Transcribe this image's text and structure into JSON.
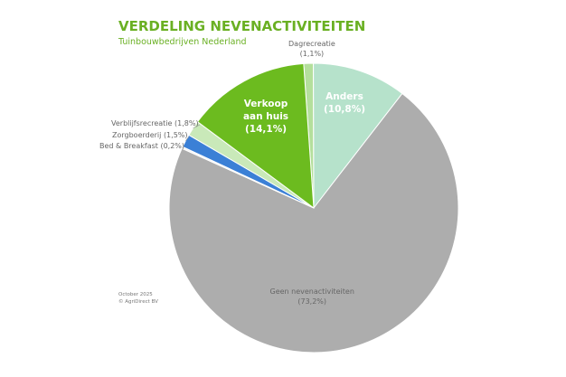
{
  "chart_data": {
    "type": "pie",
    "title": "VERDELING NEVENACTIVITEITEN",
    "subtitle": "Tuinbouwbedrijven Nederland",
    "categories": [
      "Dagrecreatie",
      "Anders",
      "Geen nevenactiviteiten",
      "Bed & Breakfast",
      "Zorgboerderij",
      "Verblijfsrecreatie",
      "Verkoop aan huis"
    ],
    "values": [
      1.1,
      10.8,
      73.2,
      0.2,
      1.5,
      1.8,
      14.1
    ],
    "value_labels": [
      "(1,1%)",
      "(10,8%)",
      "(73,2%)",
      "(0,2%)",
      "(1,5%)",
      "(1,8%)",
      "(14,1%)"
    ],
    "colors": [
      "#b4df9c",
      "#b6e2cb",
      "#adadad",
      "#f2f2f2",
      "#3b80d6",
      "#c9e9b9",
      "#6cbb1f"
    ],
    "notes": [
      "October 2025",
      "© AgriDirect BV"
    ]
  }
}
